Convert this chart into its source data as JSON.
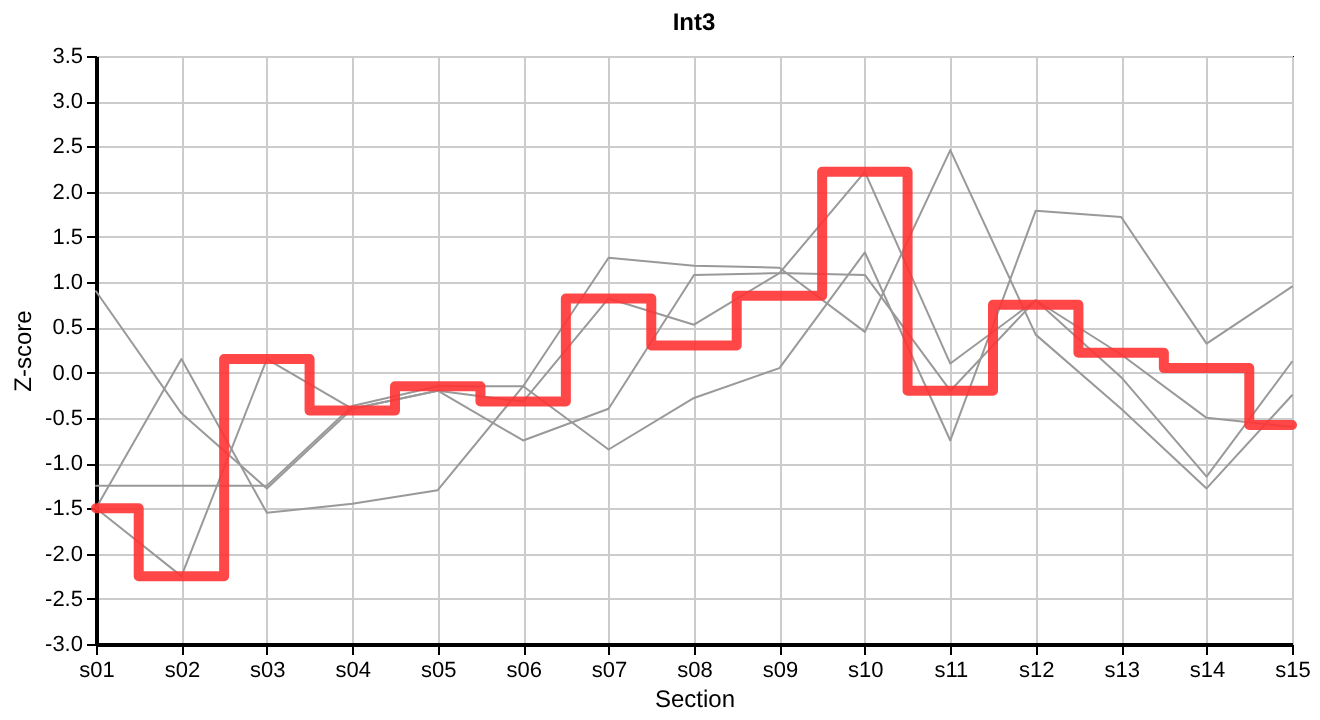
{
  "chart_data": {
    "type": "line",
    "title": "Int3",
    "xlabel": "Section",
    "ylabel": "Z-score",
    "categories": [
      "s01",
      "s02",
      "s03",
      "s04",
      "s05",
      "s06",
      "s07",
      "s08",
      "s09",
      "s10",
      "s11",
      "s12",
      "s13",
      "s14",
      "s15"
    ],
    "series": [
      {
        "color": "#999999",
        "type": "line",
        "values": [
          0.9,
          -0.45,
          -1.28,
          -0.4,
          -0.2,
          -0.75,
          -0.4,
          1.08,
          1.1,
          2.22,
          0.1,
          0.8,
          -0.05,
          -1.15,
          0.12
        ]
      },
      {
        "color": "#999999",
        "type": "line",
        "values": [
          -1.25,
          -1.25,
          -1.25,
          -0.37,
          -0.15,
          -0.15,
          1.27,
          1.18,
          1.16,
          0.45,
          2.46,
          0.42,
          -0.4,
          -1.28,
          -0.25
        ]
      },
      {
        "color": "#999999",
        "type": "line",
        "values": [
          -1.5,
          0.15,
          -1.55,
          -1.45,
          -1.3,
          -0.15,
          -0.85,
          -0.28,
          0.05,
          1.33,
          -0.75,
          1.79,
          1.72,
          0.32,
          0.95
        ]
      },
      {
        "color": "#999999",
        "type": "line",
        "values": [
          -1.5,
          -2.25,
          0.15,
          -0.4,
          -0.2,
          -0.32,
          0.82,
          0.53,
          1.1,
          1.08,
          -0.2,
          0.8,
          0.2,
          -0.5,
          -0.6
        ]
      },
      {
        "color": "#ff3333",
        "type": "step",
        "values": [
          -1.5,
          -2.25,
          0.15,
          -0.42,
          -0.15,
          -0.32,
          0.82,
          0.3,
          0.85,
          2.22,
          -0.2,
          0.75,
          0.22,
          0.05,
          -0.58
        ]
      }
    ],
    "ylim": [
      -3.0,
      3.5
    ],
    "yticks": [
      {
        "value": -3,
        "label": "-3.0"
      },
      {
        "value": -2.5,
        "label": "-2.5"
      },
      {
        "value": -2,
        "label": "-2.0"
      },
      {
        "value": -1.5,
        "label": "-1.5"
      },
      {
        "value": -1,
        "label": "-1.0"
      },
      {
        "value": -0.5,
        "label": "-0.5"
      },
      {
        "value": 0,
        "label": "0.0"
      },
      {
        "value": 0.5,
        "label": "0.5"
      },
      {
        "value": 1,
        "label": "1.0"
      },
      {
        "value": 1.5,
        "label": "1.5"
      },
      {
        "value": 2,
        "label": "2.0"
      },
      {
        "value": 2.5,
        "label": "2.5"
      },
      {
        "value": 3,
        "label": "3.0"
      },
      {
        "value": 3.5,
        "label": "3.5"
      }
    ],
    "grid": true,
    "legend": false,
    "marker": "none"
  }
}
